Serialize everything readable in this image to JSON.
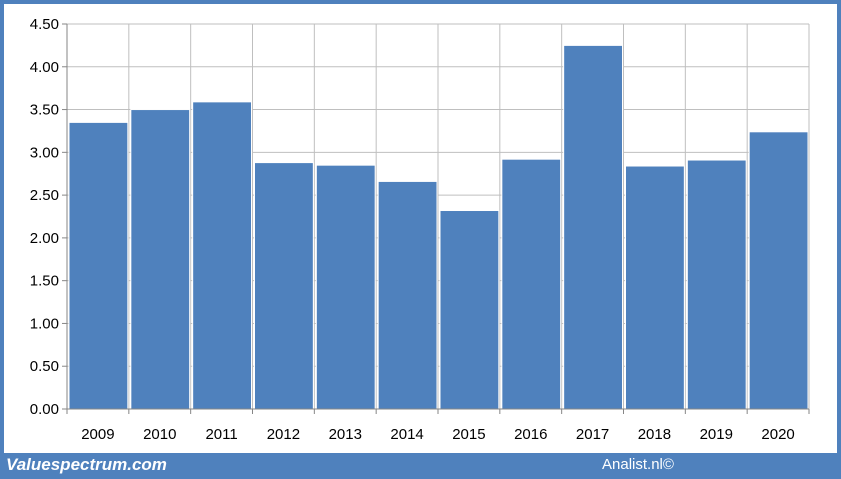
{
  "footer": {
    "left_text": "Valuespectrum.com",
    "right_text": "Analist.nl©"
  },
  "colors": {
    "frame": "#4f81bd",
    "bar": "#4f81bd",
    "bar_border": "#ffffff",
    "grid": "#bfbfbf",
    "axis": "#868686"
  },
  "chart_data": {
    "type": "bar",
    "categories": [
      "2009",
      "2010",
      "2011",
      "2012",
      "2013",
      "2014",
      "2015",
      "2016",
      "2017",
      "2018",
      "2019",
      "2020"
    ],
    "values": [
      3.35,
      3.5,
      3.59,
      2.88,
      2.85,
      2.66,
      2.32,
      2.92,
      4.25,
      2.84,
      2.91,
      3.24
    ],
    "title": "",
    "xlabel": "",
    "ylabel": "",
    "ylim": [
      0,
      4.5
    ],
    "yticks": [
      "0.00",
      "0.50",
      "1.00",
      "1.50",
      "2.00",
      "2.50",
      "3.00",
      "3.50",
      "4.00",
      "4.50"
    ],
    "grid": "vertical and horizontal",
    "legend": "none"
  }
}
